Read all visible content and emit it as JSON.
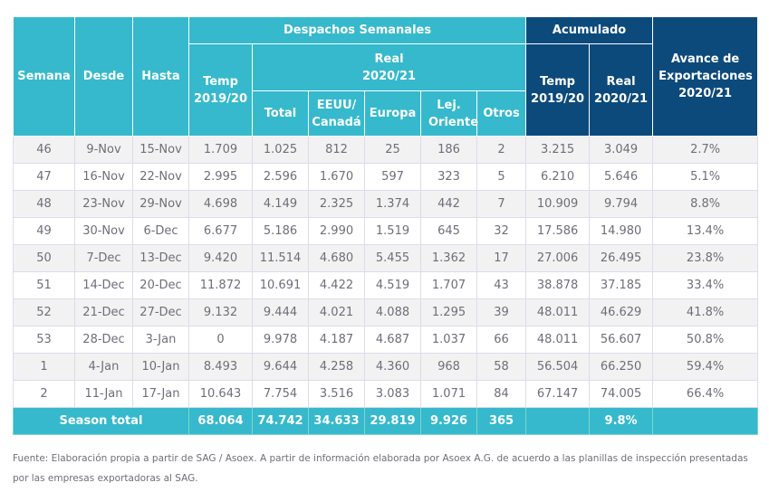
{
  "headers": {
    "semana": "Semana",
    "desde": "Desde",
    "hasta": "Hasta",
    "despachos": "Despachos Semanales",
    "temp": "Temp 2019/20",
    "real": "Real 2020/21",
    "total": "Total",
    "eeuu": "EEUU/ Canadá",
    "europa": "Europa",
    "lej": "Lej. Oriente",
    "otros": "Otros",
    "acumulado": "Acumulado",
    "acum_temp": "Temp 2019/20",
    "acum_real": "Real 2020/21",
    "avance": "Avance de Exportaciones 2020/21"
  },
  "rows": [
    [
      "46",
      "9-Nov",
      "15-Nov",
      "1.709",
      "1.025",
      "812",
      "25",
      "186",
      "2",
      "3.215",
      "3.049",
      "2.7%"
    ],
    [
      "47",
      "16-Nov",
      "22-Nov",
      "2.995",
      "2.596",
      "1.670",
      "597",
      "323",
      "5",
      "6.210",
      "5.646",
      "5.1%"
    ],
    [
      "48",
      "23-Nov",
      "29-Nov",
      "4.698",
      "4.149",
      "2.325",
      "1.374",
      "442",
      "7",
      "10.909",
      "9.794",
      "8.8%"
    ],
    [
      "49",
      "30-Nov",
      "6-Dec",
      "6.677",
      "5.186",
      "2.990",
      "1.519",
      "645",
      "32",
      "17.586",
      "14.980",
      "13.4%"
    ],
    [
      "50",
      "7-Dec",
      "13-Dec",
      "9.420",
      "11.514",
      "4.680",
      "5.455",
      "1.362",
      "17",
      "27.006",
      "26.495",
      "23.8%"
    ],
    [
      "51",
      "14-Dec",
      "20-Dec",
      "11.872",
      "10.691",
      "4.422",
      "4.519",
      "1.707",
      "43",
      "38.878",
      "37.185",
      "33.4%"
    ],
    [
      "52",
      "21-Dec",
      "27-Dec",
      "9.132",
      "9.444",
      "4.021",
      "4.088",
      "1.295",
      "39",
      "48.011",
      "46.629",
      "41.8%"
    ],
    [
      "53",
      "28-Dec",
      "3-Jan",
      "0",
      "9.978",
      "4.187",
      "4.687",
      "1.037",
      "66",
      "48.011",
      "56.607",
      "50.8%"
    ],
    [
      "1",
      "4-Jan",
      "10-Jan",
      "8.493",
      "9.644",
      "4.258",
      "4.360",
      "968",
      "58",
      "56.504",
      "66.250",
      "59.4%"
    ],
    [
      "2",
      "11-Jan",
      "17-Jan",
      "10.643",
      "7.754",
      "3.516",
      "3.083",
      "1.071",
      "84",
      "67.147",
      "74.005",
      "66.4%"
    ]
  ],
  "total": {
    "label": "Season total",
    "values": [
      "68.064",
      "74.742",
      "34.633",
      "29.819",
      "9.926",
      "365",
      "",
      "9.8%",
      ""
    ]
  },
  "footer": "Fuente: Elaboración propia a partir de SAG / Asoex. A partir de información elaborada por Asoex A.G. de acuerdo a las planillas de inspección presentadas por las empresas exportadoras al SAG."
}
